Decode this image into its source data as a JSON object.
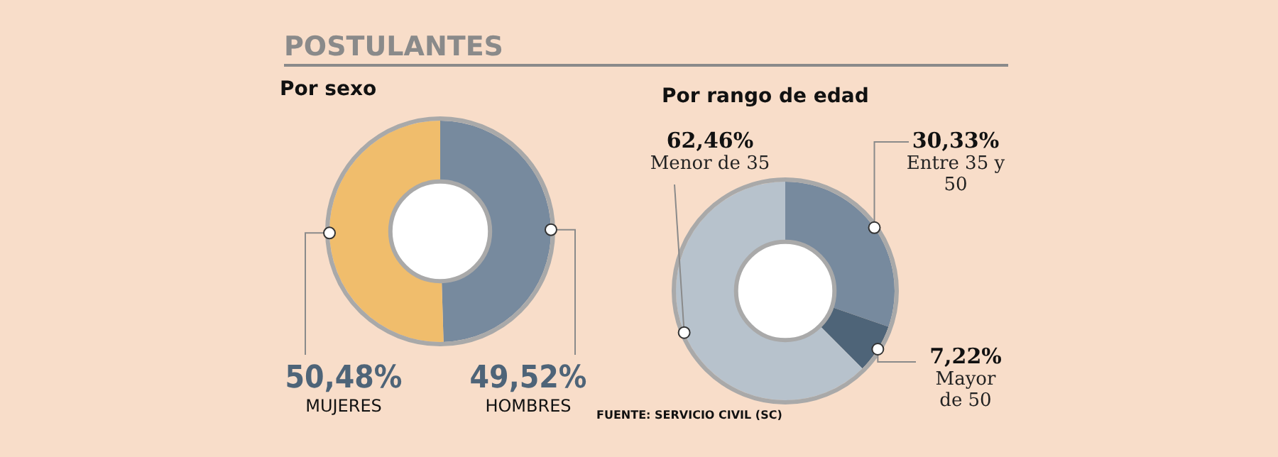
{
  "chart_data": [
    {
      "type": "donut",
      "title": "POSTULANTES",
      "subtitle": "Por sexo",
      "categories": [
        "HOMBRES",
        "MUJERES"
      ],
      "values": [
        49.52,
        50.48
      ],
      "colors": [
        "#778a9e",
        "#f0bd6c"
      ],
      "value_labels": [
        "49,52%",
        "50,48%"
      ],
      "legend": false
    },
    {
      "type": "donut",
      "subtitle": "Por rango de edad",
      "categories": [
        "Entre 35 y 50",
        "Mayor de 50",
        "Menor de 35"
      ],
      "values": [
        30.33,
        7.22,
        62.46
      ],
      "colors": [
        "#778a9e",
        "#4e6478",
        "#b7c2cc"
      ],
      "value_labels": [
        "30,33%",
        "7,22%",
        "62,46%"
      ],
      "legend": false,
      "annotations": [
        "FUENTE: SERVICIO CIVIL (SC)"
      ]
    }
  ]
}
